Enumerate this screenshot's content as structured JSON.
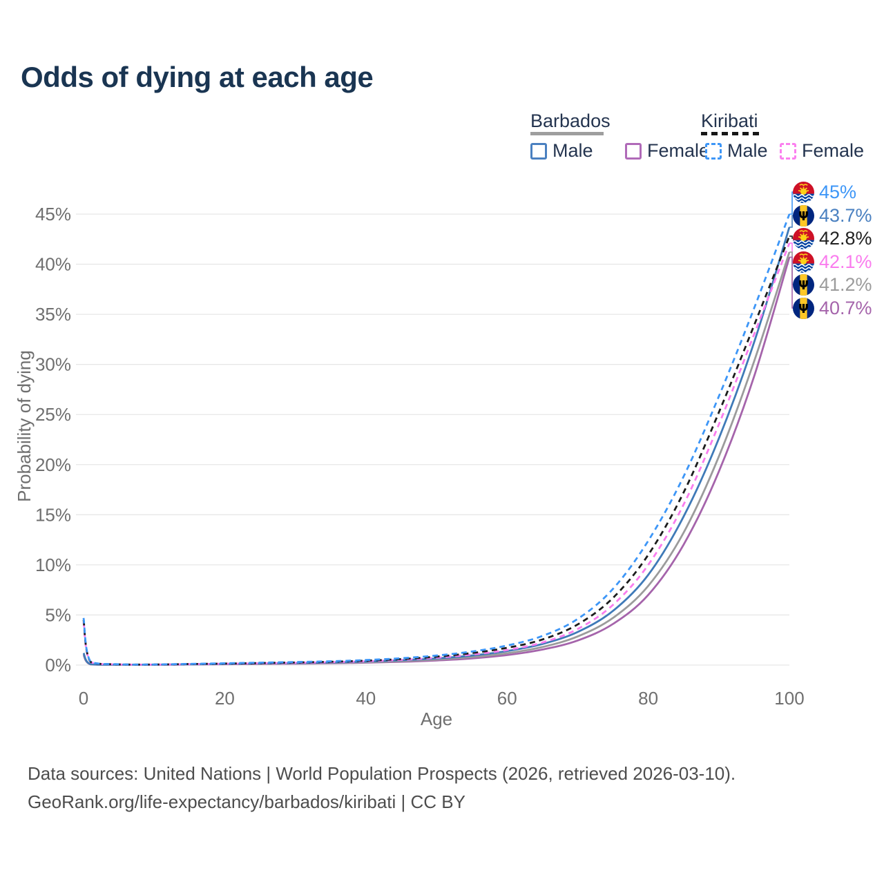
{
  "title": "Odds of dying at each age",
  "legend": {
    "groups": [
      {
        "label": "Barbados",
        "line_style": "solid",
        "underline_color": "#9e9e9e",
        "items": [
          {
            "label": "Male",
            "color": "#4a80c0",
            "dashed": false
          },
          {
            "label": "Female",
            "color": "#b06ab8",
            "dashed": false
          }
        ]
      },
      {
        "label": "Kiribati",
        "line_style": "dashed",
        "underline_color": "#161616",
        "items": [
          {
            "label": "Male",
            "color": "#3d96f7",
            "dashed": true
          },
          {
            "label": "Female",
            "color": "#fb80ef",
            "dashed": true
          }
        ]
      }
    ]
  },
  "chart_data": {
    "type": "line",
    "title": "Odds of dying at each age",
    "xlabel": "Age",
    "ylabel": "Probability of dying",
    "xlim": [
      0,
      100
    ],
    "ylim": [
      0,
      47
    ],
    "grid": "horizontal",
    "legend_position": "top-right",
    "watermark": "100",
    "x_tick_values": [
      0,
      20,
      40,
      60,
      80,
      100
    ],
    "x_tick_labels": [
      "0",
      "20",
      "40",
      "60",
      "80",
      "100"
    ],
    "y_tick_values": [
      0,
      5,
      10,
      15,
      20,
      25,
      30,
      35,
      40,
      45
    ],
    "y_tick_labels": [
      "0%",
      "5%",
      "10%",
      "15%",
      "20%",
      "25%",
      "30%",
      "35%",
      "40%",
      "45%"
    ],
    "ages": [
      0,
      1,
      5,
      10,
      15,
      20,
      25,
      30,
      35,
      40,
      45,
      50,
      55,
      60,
      65,
      70,
      75,
      80,
      85,
      90,
      95,
      100
    ],
    "series": [
      {
        "name": "Kiribati Male",
        "country": "Kiribati",
        "sex": "Male",
        "color": "#3d96f7",
        "dashed": true,
        "end_value": 45.0,
        "end_label": "45%",
        "values": [
          4.7,
          0.35,
          0.08,
          0.06,
          0.12,
          0.18,
          0.24,
          0.3,
          0.38,
          0.5,
          0.68,
          0.95,
          1.35,
          1.95,
          2.9,
          4.6,
          7.6,
          12.4,
          18.8,
          26.8,
          35.6,
          45.0
        ]
      },
      {
        "name": "Barbados Male",
        "country": "Barbados",
        "sex": "Male",
        "color": "#3f7ab8",
        "dashed": false,
        "end_value": 43.7,
        "end_label": "43.7%",
        "values": [
          1.2,
          0.09,
          0.04,
          0.04,
          0.08,
          0.12,
          0.16,
          0.2,
          0.26,
          0.35,
          0.48,
          0.66,
          0.95,
          1.4,
          2.1,
          3.3,
          5.4,
          9.0,
          14.8,
          22.6,
          32.2,
          43.7
        ]
      },
      {
        "name": "Kiribati Both sexes",
        "country": "Kiribati",
        "sex": "Both",
        "color": "#1c1c1c",
        "dashed": true,
        "end_value": 42.8,
        "end_label": "42.8%",
        "values": [
          4.5,
          0.32,
          0.07,
          0.055,
          0.1,
          0.15,
          0.2,
          0.26,
          0.33,
          0.44,
          0.6,
          0.84,
          1.2,
          1.72,
          2.55,
          4.05,
          6.7,
          11.0,
          17.2,
          25.2,
          33.9,
          42.8
        ]
      },
      {
        "name": "Kiribati Female",
        "country": "Kiribati",
        "sex": "Female",
        "color": "#fa7cee",
        "dashed": true,
        "end_value": 42.1,
        "end_label": "42.1%",
        "values": [
          4.3,
          0.3,
          0.065,
          0.05,
          0.09,
          0.13,
          0.17,
          0.22,
          0.29,
          0.38,
          0.52,
          0.73,
          1.05,
          1.5,
          2.25,
          3.6,
          6.0,
          10.0,
          16.0,
          24.0,
          33.0,
          42.1
        ]
      },
      {
        "name": "Barbados Both sexes",
        "country": "Barbados",
        "sex": "Both",
        "color": "#9b9b9b",
        "dashed": false,
        "end_value": 41.2,
        "end_label": "41.2%",
        "values": [
          1.1,
          0.08,
          0.035,
          0.035,
          0.07,
          0.1,
          0.13,
          0.17,
          0.22,
          0.29,
          0.4,
          0.55,
          0.8,
          1.18,
          1.8,
          2.85,
          4.7,
          7.9,
          13.2,
          20.8,
          30.3,
          41.2
        ]
      },
      {
        "name": "Barbados Female",
        "country": "Barbados",
        "sex": "Female",
        "color": "#a564ab",
        "dashed": false,
        "end_value": 40.7,
        "end_label": "40.7%",
        "values": [
          1.0,
          0.07,
          0.03,
          0.03,
          0.06,
          0.09,
          0.11,
          0.14,
          0.18,
          0.24,
          0.33,
          0.46,
          0.67,
          1.0,
          1.55,
          2.45,
          4.1,
          7.0,
          12.0,
          19.3,
          28.8,
          40.7
        ]
      }
    ]
  },
  "end_labels": [
    {
      "value": "45%",
      "flag": "kiribati",
      "series": 0,
      "color": "#3d96f7"
    },
    {
      "value": "43.7%",
      "flag": "barbados",
      "series": 1,
      "color": "#4a80c0"
    },
    {
      "value": "42.8%",
      "flag": "kiribati",
      "series": 2,
      "color": "#222222"
    },
    {
      "value": "42.1%",
      "flag": "kiribati",
      "series": 3,
      "color": "#fa7cee"
    },
    {
      "value": "41.2%",
      "flag": "barbados",
      "series": 4,
      "color": "#9b9b9b"
    },
    {
      "value": "40.7%",
      "flag": "barbados",
      "series": 5,
      "color": "#a564ab"
    }
  ],
  "footer": {
    "line1": "Data sources: United Nations | World Population Prospects (2026, retrieved 2026-03-10).",
    "line2": "GeoRank.org/life-expectancy/barbados/kiribati | CC BY"
  }
}
